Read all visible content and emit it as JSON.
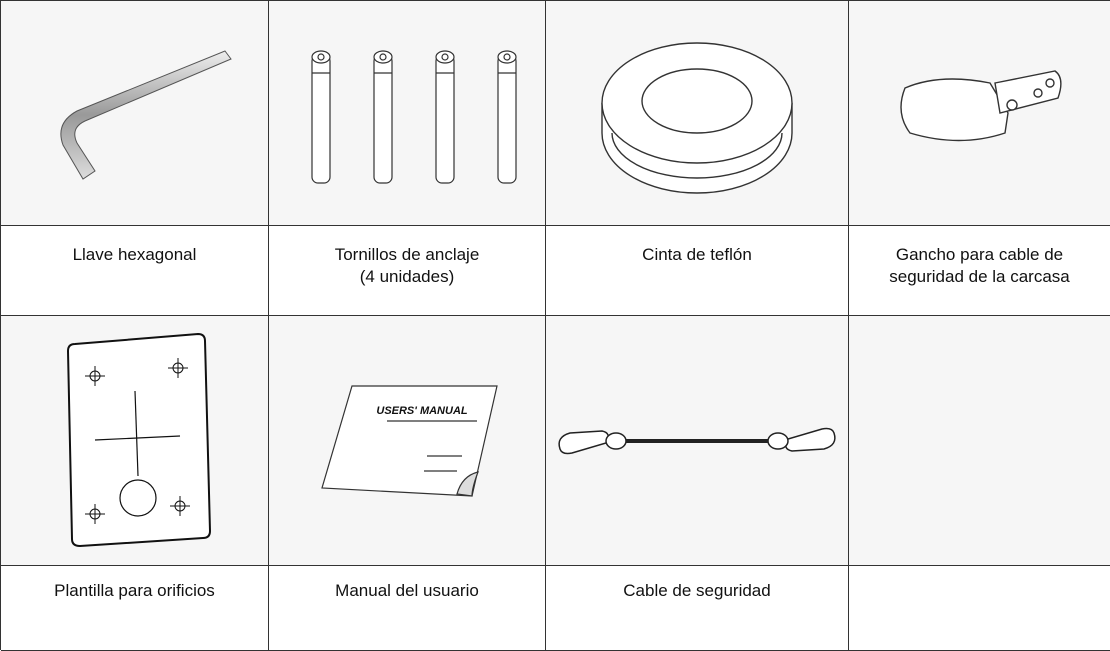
{
  "items": [
    {
      "label": "Llave hexagonal"
    },
    {
      "label": "Tornillos de anclaje\n(4 unidades)"
    },
    {
      "label": "Cinta de teflón"
    },
    {
      "label": "Gancho para cable de\nseguridad de la carcasa"
    },
    {
      "label": "Plantilla para orificios"
    },
    {
      "label": "Manual del usuario",
      "cover_text": "USERS' MANUAL"
    },
    {
      "label": "Cable de seguridad"
    }
  ]
}
